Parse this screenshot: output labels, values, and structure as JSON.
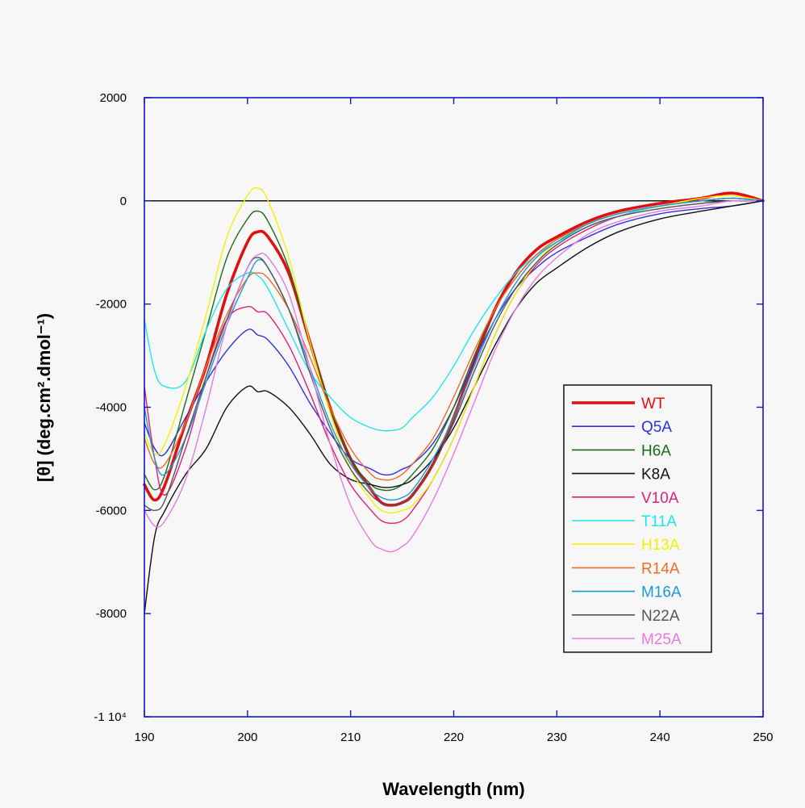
{
  "chart_data": {
    "type": "line",
    "xlabel": "Wavelength (nm)",
    "ylabel": "[θ] (deg.cm².dmol⁻¹)",
    "xlim": [
      190,
      250
    ],
    "ylim": [
      -10000,
      2000
    ],
    "xticks": [
      190,
      200,
      210,
      220,
      230,
      240,
      250
    ],
    "xtick_labels": [
      "190",
      "200",
      "210",
      "220",
      "230",
      "240",
      "250"
    ],
    "yticks": [
      2000,
      0,
      -2000,
      -4000,
      -6000,
      -8000,
      -10000
    ],
    "ytick_labels": [
      "2000",
      "0",
      "-2000",
      "-4000",
      "-6000",
      "-8000",
      "-1 10⁴"
    ],
    "zero_line": true,
    "grid": false,
    "legend_position": "right",
    "colors": {
      "axis_frame": "#1414c8",
      "zero_line": "#000000",
      "legend_frame": "#000000",
      "plot_background": "#f7f7f7"
    },
    "series": [
      {
        "name": "WT",
        "color": "#e01010",
        "width": 3.6,
        "x": [
          190,
          191,
          192,
          194,
          196,
          198,
          200,
          201,
          202,
          204,
          206,
          208,
          210,
          212,
          213,
          214,
          215,
          216,
          218,
          220,
          222,
          224,
          226,
          228,
          230,
          233,
          236,
          240,
          244,
          247,
          250
        ],
        "y": [
          -5500,
          -5800,
          -5500,
          -4300,
          -3200,
          -1800,
          -800,
          -600,
          -700,
          -1400,
          -2700,
          -4000,
          -5000,
          -5600,
          -5850,
          -5900,
          -5850,
          -5700,
          -5100,
          -4200,
          -3100,
          -2100,
          -1400,
          -950,
          -700,
          -400,
          -200,
          -50,
          50,
          150,
          0
        ]
      },
      {
        "name": "Q5A",
        "color": "#3030e0",
        "width": 1.4,
        "x": [
          190,
          191,
          192,
          194,
          196,
          198,
          200,
          201,
          202,
          204,
          206,
          208,
          210,
          212,
          213,
          214,
          215,
          216,
          218,
          220,
          222,
          224,
          226,
          228,
          230,
          233,
          236,
          240,
          244,
          247,
          250
        ],
        "y": [
          -4300,
          -4800,
          -4900,
          -4200,
          -3500,
          -2900,
          -2500,
          -2600,
          -2700,
          -3200,
          -3900,
          -4500,
          -5000,
          -5200,
          -5300,
          -5300,
          -5200,
          -5100,
          -4700,
          -4000,
          -3100,
          -2300,
          -1700,
          -1300,
          -1000,
          -700,
          -450,
          -250,
          -150,
          -100,
          0
        ]
      },
      {
        "name": "H6A",
        "color": "#1a6b1a",
        "width": 1.4,
        "x": [
          190,
          191,
          192,
          194,
          196,
          198,
          200,
          201,
          202,
          204,
          206,
          208,
          210,
          212,
          213,
          214,
          215,
          216,
          218,
          220,
          222,
          224,
          226,
          228,
          230,
          233,
          236,
          240,
          244,
          247,
          250
        ],
        "y": [
          -5300,
          -5600,
          -5300,
          -3900,
          -2500,
          -1100,
          -350,
          -200,
          -400,
          -1300,
          -2700,
          -4000,
          -5000,
          -5500,
          -5600,
          -5600,
          -5500,
          -5300,
          -4800,
          -4000,
          -3000,
          -2100,
          -1500,
          -1050,
          -750,
          -450,
          -250,
          -100,
          0,
          50,
          0
        ]
      },
      {
        "name": "K8A",
        "color": "#111111",
        "width": 1.4,
        "x": [
          190,
          191,
          192,
          194,
          196,
          198,
          200,
          201,
          202,
          204,
          206,
          208,
          210,
          212,
          213,
          214,
          215,
          216,
          218,
          220,
          222,
          224,
          226,
          228,
          230,
          233,
          236,
          240,
          244,
          247,
          250
        ],
        "y": [
          -8000,
          -6500,
          -6000,
          -5300,
          -4800,
          -4000,
          -3600,
          -3700,
          -3700,
          -4000,
          -4500,
          -5100,
          -5400,
          -5500,
          -5550,
          -5550,
          -5500,
          -5400,
          -5000,
          -4400,
          -3600,
          -2800,
          -2100,
          -1600,
          -1300,
          -900,
          -600,
          -350,
          -200,
          -100,
          0
        ]
      },
      {
        "name": "V10A",
        "color": "#e0207a",
        "width": 1.4,
        "x": [
          190,
          191,
          192,
          194,
          196,
          198,
          200,
          201,
          202,
          204,
          206,
          208,
          210,
          212,
          213,
          214,
          215,
          216,
          218,
          220,
          222,
          224,
          226,
          228,
          230,
          233,
          236,
          240,
          244,
          247,
          250
        ],
        "y": [
          -3600,
          -5000,
          -5700,
          -4800,
          -3400,
          -2300,
          -2050,
          -2150,
          -2200,
          -2800,
          -3700,
          -4700,
          -5500,
          -6000,
          -6200,
          -6250,
          -6200,
          -6000,
          -5400,
          -4600,
          -3600,
          -2600,
          -1800,
          -1250,
          -900,
          -550,
          -300,
          -100,
          0,
          50,
          0
        ]
      },
      {
        "name": "T11A",
        "color": "#1ee6ee",
        "width": 1.4,
        "x": [
          190,
          191,
          192,
          194,
          196,
          198,
          200,
          201,
          202,
          204,
          206,
          208,
          210,
          212,
          213,
          214,
          215,
          216,
          218,
          220,
          222,
          224,
          226,
          228,
          230,
          233,
          236,
          240,
          244,
          247,
          250
        ],
        "y": [
          -2300,
          -3300,
          -3600,
          -3500,
          -2500,
          -1700,
          -1400,
          -1450,
          -1700,
          -2500,
          -3300,
          -3800,
          -4200,
          -4400,
          -4450,
          -4450,
          -4400,
          -4200,
          -3800,
          -3200,
          -2500,
          -1900,
          -1400,
          -1050,
          -800,
          -500,
          -300,
          -100,
          0,
          50,
          0
        ]
      },
      {
        "name": "H13A",
        "color": "#f2f200",
        "width": 1.4,
        "x": [
          190,
          191,
          192,
          194,
          196,
          198,
          200,
          201,
          202,
          204,
          206,
          208,
          210,
          212,
          213,
          214,
          215,
          216,
          218,
          220,
          222,
          224,
          226,
          228,
          230,
          233,
          236,
          240,
          244,
          247,
          250
        ],
        "y": [
          -4500,
          -4900,
          -4700,
          -3600,
          -2200,
          -700,
          100,
          250,
          0,
          -1100,
          -2700,
          -4100,
          -5200,
          -5800,
          -6000,
          -6050,
          -6000,
          -5900,
          -5400,
          -4600,
          -3600,
          -2600,
          -1800,
          -1200,
          -800,
          -450,
          -250,
          -100,
          50,
          100,
          0
        ]
      },
      {
        "name": "R14A",
        "color": "#f06a2a",
        "width": 1.4,
        "x": [
          190,
          191,
          192,
          194,
          196,
          198,
          200,
          201,
          202,
          204,
          206,
          208,
          210,
          212,
          213,
          214,
          215,
          216,
          218,
          220,
          222,
          224,
          226,
          228,
          230,
          233,
          236,
          240,
          244,
          247,
          250
        ],
        "y": [
          -4600,
          -5100,
          -5100,
          -4300,
          -3200,
          -2200,
          -1500,
          -1400,
          -1500,
          -2100,
          -3000,
          -4000,
          -4800,
          -5300,
          -5400,
          -5400,
          -5300,
          -5100,
          -4600,
          -3800,
          -2900,
          -2100,
          -1500,
          -1050,
          -750,
          -450,
          -250,
          -100,
          0,
          50,
          0
        ]
      },
      {
        "name": "M16A",
        "color": "#1a9ad8",
        "width": 1.4,
        "x": [
          190,
          191,
          192,
          194,
          196,
          198,
          200,
          201,
          202,
          204,
          206,
          208,
          210,
          212,
          213,
          214,
          215,
          216,
          218,
          220,
          222,
          224,
          226,
          228,
          230,
          233,
          236,
          240,
          244,
          247,
          250
        ],
        "y": [
          -4000,
          -5000,
          -5300,
          -4600,
          -3500,
          -2400,
          -1500,
          -1150,
          -1300,
          -2100,
          -3200,
          -4300,
          -5100,
          -5600,
          -5750,
          -5800,
          -5750,
          -5600,
          -5000,
          -4200,
          -3200,
          -2300,
          -1600,
          -1100,
          -800,
          -450,
          -250,
          -100,
          0,
          50,
          0
        ]
      },
      {
        "name": "N22A",
        "color": "#555555",
        "width": 1.4,
        "x": [
          190,
          191,
          192,
          194,
          196,
          198,
          200,
          201,
          202,
          204,
          206,
          208,
          210,
          212,
          213,
          214,
          215,
          216,
          218,
          220,
          222,
          224,
          226,
          228,
          230,
          233,
          236,
          240,
          244,
          247,
          250
        ],
        "y": [
          -5900,
          -6000,
          -5800,
          -4600,
          -3400,
          -2300,
          -1300,
          -1100,
          -1300,
          -2100,
          -3300,
          -4400,
          -5200,
          -5700,
          -5850,
          -5900,
          -5850,
          -5700,
          -5100,
          -4300,
          -3300,
          -2400,
          -1700,
          -1200,
          -850,
          -500,
          -300,
          -150,
          -50,
          0,
          0
        ]
      },
      {
        "name": "M25A",
        "color": "#e67ae0",
        "width": 1.4,
        "x": [
          190,
          191,
          192,
          194,
          196,
          198,
          200,
          201,
          202,
          204,
          206,
          208,
          210,
          212,
          213,
          214,
          215,
          216,
          218,
          220,
          222,
          224,
          226,
          228,
          230,
          233,
          236,
          240,
          244,
          247,
          250
        ],
        "y": [
          -6000,
          -6300,
          -6200,
          -5400,
          -4000,
          -2400,
          -1300,
          -1050,
          -1100,
          -1800,
          -3200,
          -4700,
          -5900,
          -6600,
          -6750,
          -6800,
          -6700,
          -6500,
          -5800,
          -4900,
          -3900,
          -2900,
          -2100,
          -1500,
          -1100,
          -650,
          -400,
          -200,
          -100,
          0,
          0
        ]
      }
    ]
  }
}
